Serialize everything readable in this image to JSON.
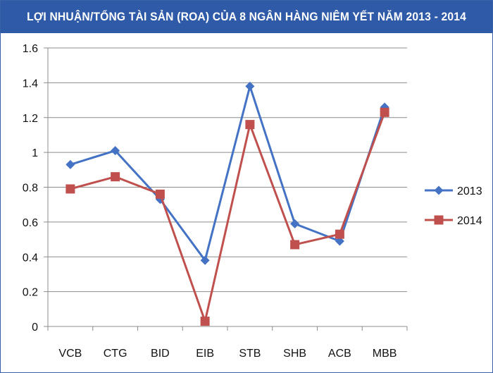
{
  "chart_data": {
    "type": "line",
    "title": "LỢI NHUẬN/TỔNG TÀI SẢN (ROA) CỦA 8 NGÂN HÀNG NIÊM YẾT NĂM 2013 - 2014",
    "categories": [
      "VCB",
      "CTG",
      "BID",
      "EIB",
      "STB",
      "SHB",
      "ACB",
      "MBB"
    ],
    "series": [
      {
        "name": "2013",
        "values": [
          0.93,
          1.01,
          0.73,
          0.38,
          1.38,
          0.59,
          0.49,
          1.26
        ],
        "color": "#4472c4",
        "marker": "diamond"
      },
      {
        "name": "2014",
        "values": [
          0.79,
          0.86,
          0.76,
          0.03,
          1.16,
          0.47,
          0.53,
          1.23
        ],
        "color": "#c0504d",
        "marker": "square"
      }
    ],
    "yticks": [
      "0",
      "0.2",
      "0.4",
      "0.6",
      "0.8",
      "1",
      "1.2",
      "1.4",
      "1.6"
    ],
    "ylim": [
      0,
      1.6
    ],
    "grid": true,
    "legend_position": "right",
    "colors": {
      "title_bar": "#2f5aa8",
      "grid": "#8c8c8c",
      "axis": "#8c8c8c"
    }
  }
}
